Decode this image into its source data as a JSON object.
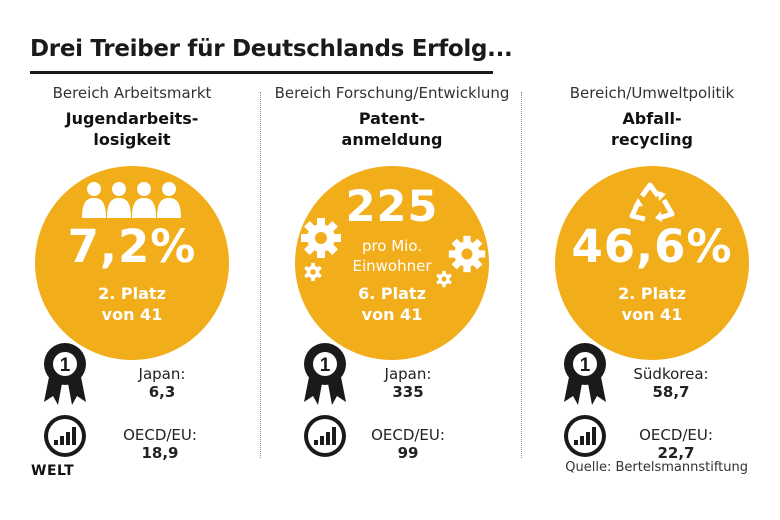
{
  "title": "Drei Treiber für Deutschlands Erfolg...",
  "colors": {
    "accent": "#f2ad1b",
    "text": "#222222",
    "white": "#ffffff"
  },
  "columns": [
    {
      "area": "Bereich Arbeitsmarkt",
      "metric_line1": "Jugendarbeits-",
      "metric_line2": "losigkeit",
      "icon": "people-icon",
      "value": "7,2%",
      "rank_line1": "2. Platz",
      "rank_line2": "von 41",
      "best_label": "Japan:",
      "best_value": "6,3",
      "avg_label": "OECD/EU:",
      "avg_value": "18,9"
    },
    {
      "area": "Bereich Forschung/Entwicklung",
      "metric_line1": "Patent-",
      "metric_line2": "anmeldung",
      "icon": "gear-icon",
      "value": "225",
      "value_sub1": "pro Mio.",
      "value_sub2": "Einwohner",
      "rank_line1": "6. Platz",
      "rank_line2": "von 41",
      "best_label": "Japan:",
      "best_value": "335",
      "avg_label": "OECD/EU:",
      "avg_value": "99"
    },
    {
      "area": "Bereich/Umweltpolitik",
      "metric_line1": "Abfall-",
      "metric_line2": "recycling",
      "icon": "recycle-icon",
      "value": "46,6%",
      "rank_line1": "2. Platz",
      "rank_line2": "von 41",
      "best_label": "Südkorea:",
      "best_value": "58,7",
      "avg_label": "OECD/EU:",
      "avg_value": "22,7"
    }
  ],
  "logo": "WELT",
  "source": "Quelle: Bertelsmannstiftung"
}
